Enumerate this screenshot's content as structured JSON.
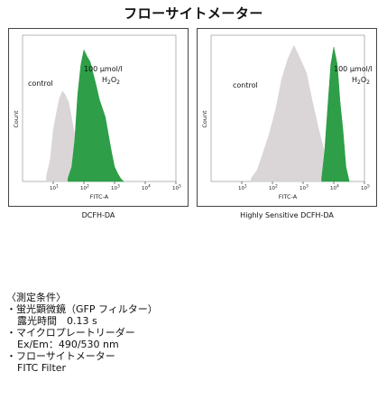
{
  "title": "フローサイトメーター",
  "chart_data": [
    {
      "type": "area",
      "caption": "DCFH-DA",
      "xlabel": "FITC-A",
      "ylabel": "Count",
      "x_scale": "log",
      "xlim": [
        1,
        100000
      ],
      "xticks": [
        {
          "value": 10,
          "base": "10",
          "exp": "1"
        },
        {
          "value": 100,
          "base": "10",
          "exp": "2"
        },
        {
          "value": 1000,
          "base": "10",
          "exp": "3"
        },
        {
          "value": 10000,
          "base": "10",
          "exp": "4"
        },
        {
          "value": 100000,
          "base": "10",
          "exp": "5"
        }
      ],
      "ylim": [
        0,
        1
      ],
      "annotations": {
        "control": "control",
        "treated_line1": "100 µmol/l",
        "treated_h": "H",
        "treated_sub1": "2",
        "treated_o": "O",
        "treated_sub2": "2"
      },
      "series": [
        {
          "color": "#d9d4d6",
          "x": [
            6,
            8,
            10,
            13,
            16,
            20,
            25,
            32,
            40,
            50,
            63,
            80,
            100,
            130,
            160,
            200
          ],
          "y": [
            0.04,
            0.15,
            0.35,
            0.48,
            0.57,
            0.62,
            0.59,
            0.54,
            0.43,
            0.32,
            0.2,
            0.12,
            0.07,
            0.04,
            0.02,
            0
          ]
        },
        {
          "color": "#2e9e48",
          "x": [
            30,
            40,
            50,
            63,
            80,
            100,
            130,
            160,
            200,
            250,
            320,
            400,
            500,
            630,
            800,
            1000,
            1300,
            1600,
            2000
          ],
          "y": [
            0.02,
            0.1,
            0.28,
            0.6,
            0.8,
            0.9,
            0.85,
            0.82,
            0.74,
            0.66,
            0.56,
            0.5,
            0.44,
            0.32,
            0.2,
            0.1,
            0.05,
            0.02,
            0
          ]
        }
      ]
    },
    {
      "type": "area",
      "caption": "Highly Sensitive DCFH-DA",
      "xlabel": "FITC-A",
      "ylabel": "Count",
      "x_scale": "log",
      "xlim": [
        1,
        100000
      ],
      "xticks": [
        {
          "value": 10,
          "base": "10",
          "exp": "1"
        },
        {
          "value": 100,
          "base": "10",
          "exp": "2"
        },
        {
          "value": 1000,
          "base": "10",
          "exp": "3"
        },
        {
          "value": 10000,
          "base": "10",
          "exp": "4"
        },
        {
          "value": 100000,
          "base": "10",
          "exp": "5"
        }
      ],
      "ylim": [
        0,
        1
      ],
      "annotations": {
        "control": "control",
        "treated_line1": "100 µmol/l",
        "treated_h": "H",
        "treated_sub1": "2",
        "treated_o": "O",
        "treated_sub2": "2"
      },
      "series": [
        {
          "color": "#d9d4d6",
          "x": [
            20,
            32,
            50,
            80,
            130,
            200,
            320,
            500,
            800,
            1300,
            2000,
            3200,
            5000,
            8000,
            13000
          ],
          "y": [
            0.02,
            0.08,
            0.2,
            0.33,
            0.5,
            0.7,
            0.84,
            0.93,
            0.84,
            0.74,
            0.55,
            0.36,
            0.2,
            0.08,
            0.02
          ]
        },
        {
          "color": "#2e9e48",
          "x": [
            4000,
            5000,
            6300,
            8000,
            10000,
            13000,
            16000,
            20000,
            25000,
            32000
          ],
          "y": [
            0.02,
            0.2,
            0.5,
            0.8,
            0.92,
            0.8,
            0.55,
            0.35,
            0.1,
            0
          ]
        }
      ]
    }
  ],
  "conditions": {
    "heading": "〈測定条件〉",
    "items": [
      {
        "label": "蛍光顕微鏡（GFP フィルター）",
        "detail": "露光時間　0.13 s"
      },
      {
        "label": "マイクロプレートリーダー",
        "detail": "Ex/Em：490/530 nm"
      },
      {
        "label": "フローサイトメーター",
        "detail": "FITC Filter"
      }
    ]
  }
}
